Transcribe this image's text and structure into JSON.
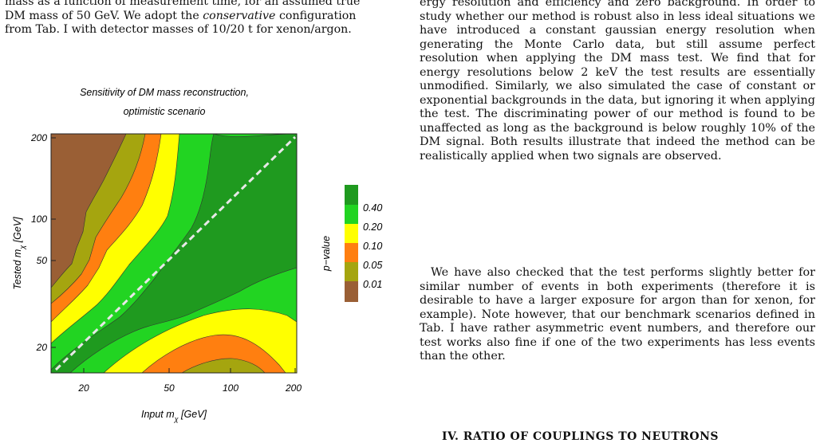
{
  "caption": {
    "line1": "mass as a function of measurement time, for an assumed true",
    "line2": "DM mass of 50 GeV. We adopt the ",
    "line2_em": "conservative",
    "line2_tail": " configuration",
    "line3": "from Tab. I with detector masses of 10/20 t for xenon/argon."
  },
  "figure": {
    "title_line1": "Sensitivity of DM mass reconstruction,",
    "title_line2": "optimistic scenario",
    "xaxis": {
      "label": "Input m",
      "sub": "χ",
      "unit": " [GeV]",
      "ticks": [
        "20",
        "50",
        "100",
        "200"
      ]
    },
    "yaxis": {
      "label": "Tested m",
      "sub": "χ",
      "unit": " [GeV]",
      "ticks": [
        "200",
        "100",
        "50",
        "20"
      ]
    },
    "legend": {
      "title": "p−value",
      "entries": [
        "0.40",
        "0.20",
        "0.10",
        "0.05",
        "0.01"
      ],
      "colors": [
        "#1f9a1f",
        "#22d422",
        "#ffff00",
        "#ff7f10",
        "#a5a50f",
        "#9a5f35"
      ]
    }
  },
  "right": {
    "para1": "ergy resolution and efficiency and zero background. In order to study whether our method is robust also in less ideal situations we have introduced a constant gaussian energy resolution when generating the Monte Carlo data, but still assume perfect resolution when applying the DM mass test. We find that for energy resolutions below 2 keV the test results are essentially unmodified. Similarly, we also simulated the case of constant or exponential backgrounds in the data, but ignoring it when applying the test. The discriminating power of our method is found to be unaffected as long as the background is below roughly 10% of the DM signal. Both results illustrate that indeed the method can be realistically applied when two signals are observed.",
    "para2": "We have also checked that the test performs slightly better for similar number of events in both experiments (therefore it is desirable to have a larger exposure for argon than for xenon, for example). Note however, that our benchmark scenarios defined in Tab. I have rather asymmetric event numbers, and therefore our test works also fine if one of the two experiments has less events than the other.",
    "section_heading": "IV.   RATIO OF COUPLINGS TO NEUTRONS"
  }
}
